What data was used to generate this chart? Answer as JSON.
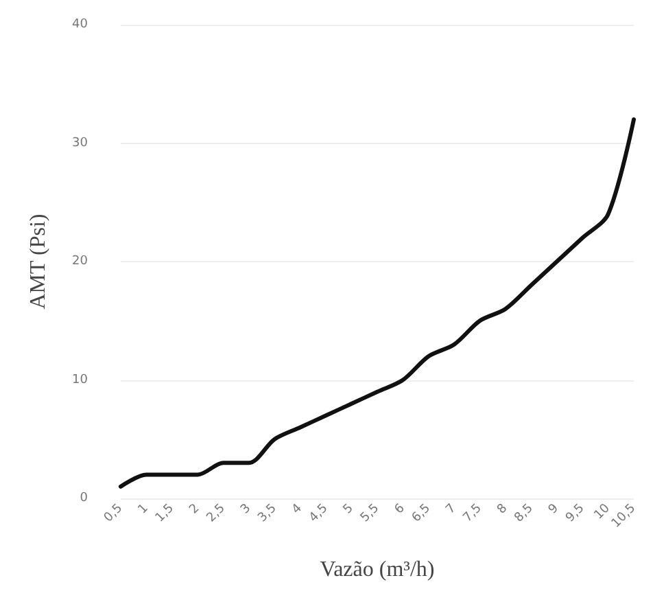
{
  "chart_data": {
    "type": "line",
    "xlabel": "Vazão (m³/h)",
    "ylabel": "AMT (Psi)",
    "categories": [
      "0,5",
      "1",
      "1,5",
      "2",
      "2,5",
      "3",
      "3,5",
      "4",
      "4,5",
      "5",
      "5,5",
      "6",
      "6,5",
      "7",
      "7,5",
      "8",
      "8,5",
      "9",
      "9,5",
      "10",
      "10,5"
    ],
    "series": [
      {
        "color": "#111111",
        "values": [
          1,
          2,
          2,
          2,
          3,
          3,
          5,
          6,
          7,
          8,
          9,
          10,
          12,
          13,
          15,
          16,
          18,
          20,
          22,
          24,
          32
        ]
      }
    ],
    "ylim": [
      0,
      40
    ],
    "yticks": [
      0,
      10,
      20,
      30,
      40
    ],
    "grid": "y",
    "marker": "none",
    "line_style": "solid"
  }
}
